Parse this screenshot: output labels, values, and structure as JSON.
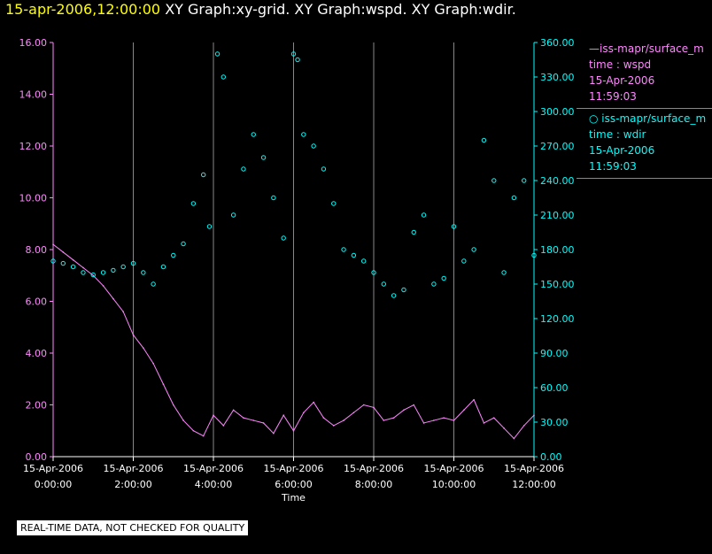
{
  "title": {
    "timestamp": "15-apr-2006,12:00:00",
    "graphs": "XY Graph:xy-grid.  XY Graph:wspd.  XY Graph:wdir."
  },
  "legend": {
    "wspd": {
      "series": "—iss-mapr/surface_m",
      "line1": "time : wspd",
      "line2": "15-Apr-2006",
      "line3": "11:59:03"
    },
    "wdir": {
      "series": "○  iss-mapr/surface_m",
      "line1": "time : wdir",
      "line2": "15-Apr-2006",
      "line3": "11:59:03"
    }
  },
  "note": "REAL-TIME DATA, NOT CHECKED FOR QUALITY",
  "colors": {
    "wspd": "#ff88ff",
    "wdir": "#00ffff",
    "grid": "#888888",
    "axis": "#ffffff"
  },
  "chart_data": {
    "type": "line",
    "xlabel": "Time",
    "x_ticks": [
      {
        "date": "15-Apr-2006",
        "time": "0:00:00"
      },
      {
        "date": "15-Apr-2006",
        "time": "2:00:00"
      },
      {
        "date": "15-Apr-2006",
        "time": "4:00:00"
      },
      {
        "date": "15-Apr-2006",
        "time": "6:00:00"
      },
      {
        "date": "15-Apr-2006",
        "time": "8:00:00"
      },
      {
        "date": "15-Apr-2006",
        "time": "10:00:00"
      },
      {
        "date": "15-Apr-2006",
        "time": "12:00:00"
      }
    ],
    "xlim_hours": [
      0,
      12
    ],
    "ylim_left": [
      0,
      16
    ],
    "y_left_ticks": [
      "0.00",
      "2.00",
      "4.00",
      "6.00",
      "8.00",
      "10.00",
      "12.00",
      "14.00",
      "16.00"
    ],
    "ylim_right": [
      0,
      360
    ],
    "y_right_ticks": [
      "0.00",
      "30.00",
      "60.00",
      "90.00",
      "120.00",
      "150.00",
      "180.00",
      "210.00",
      "240.00",
      "270.00",
      "300.00",
      "330.00",
      "360.00"
    ],
    "grid": "vertical",
    "series": [
      {
        "id": "wspd",
        "axis": "left",
        "style": "line",
        "x_hours": [
          0,
          0.25,
          0.5,
          0.75,
          1,
          1.25,
          1.5,
          1.75,
          2,
          2.25,
          2.5,
          2.75,
          3,
          3.25,
          3.5,
          3.75,
          4,
          4.25,
          4.5,
          4.75,
          5,
          5.25,
          5.5,
          5.75,
          6,
          6.25,
          6.5,
          6.75,
          7,
          7.25,
          7.5,
          7.75,
          8,
          8.25,
          8.5,
          8.75,
          9,
          9.25,
          9.5,
          9.75,
          10,
          10.25,
          10.5,
          10.75,
          11,
          11.25,
          11.5,
          11.75,
          12
        ],
        "values": [
          8.2,
          7.9,
          7.6,
          7.3,
          7.0,
          6.6,
          6.1,
          5.6,
          4.7,
          4.2,
          3.6,
          2.8,
          2.0,
          1.4,
          1.0,
          0.8,
          1.6,
          1.2,
          1.8,
          1.5,
          1.4,
          1.3,
          0.9,
          1.6,
          1.0,
          1.7,
          2.1,
          1.5,
          1.2,
          1.4,
          1.7,
          2.0,
          1.9,
          1.4,
          1.5,
          1.8,
          2.0,
          1.3,
          1.4,
          1.5,
          1.4,
          1.8,
          2.2,
          1.3,
          1.5,
          1.1,
          0.7,
          1.2,
          1.6
        ]
      },
      {
        "id": "wdir",
        "axis": "right",
        "style": "scatter",
        "x_hours": [
          0,
          0.25,
          0.5,
          0.75,
          1,
          1.25,
          1.5,
          1.75,
          2,
          2.25,
          2.5,
          2.75,
          3,
          3.25,
          3.5,
          3.75,
          3.9,
          4.1,
          4.25,
          4.5,
          4.75,
          5,
          5.25,
          5.5,
          5.75,
          6,
          6.1,
          6.25,
          6.5,
          6.75,
          7,
          7.25,
          7.5,
          7.75,
          8,
          8.25,
          8.5,
          8.75,
          9,
          9.25,
          9.5,
          9.75,
          10,
          10.25,
          10.5,
          10.75,
          11,
          11.25,
          11.5,
          11.75,
          12
        ],
        "values": [
          170,
          168,
          165,
          160,
          158,
          160,
          162,
          165,
          168,
          160,
          150,
          165,
          175,
          185,
          220,
          245,
          200,
          350,
          330,
          210,
          250,
          280,
          260,
          225,
          190,
          350,
          345,
          280,
          270,
          250,
          220,
          180,
          175,
          170,
          160,
          150,
          140,
          145,
          195,
          210,
          150,
          155,
          200,
          170,
          180,
          275,
          240,
          160,
          225,
          240,
          175
        ]
      }
    ]
  }
}
